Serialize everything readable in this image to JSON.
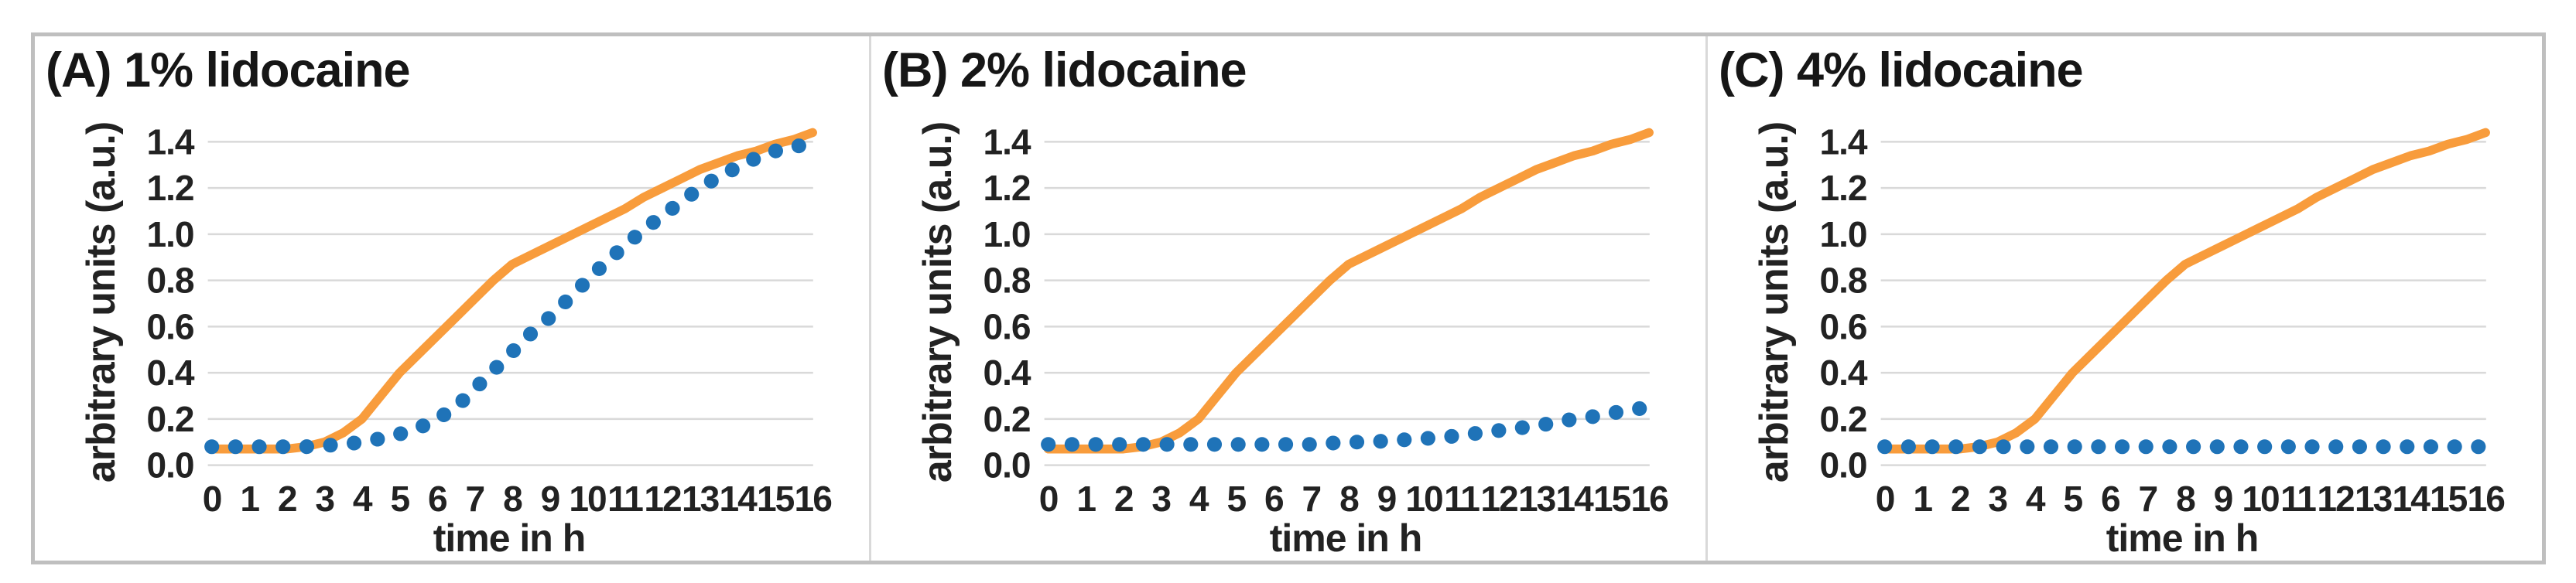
{
  "figure": {
    "ylabel": "arbitrary units (a.u.)",
    "xlabel": "time in h"
  },
  "panels": [
    {
      "label": "A",
      "title": "(A) 1% lidocaine"
    },
    {
      "label": "B",
      "title": "(B) 2% lidocaine"
    },
    {
      "label": "C",
      "title": "(C) 4% lidocaine"
    }
  ],
  "colors": {
    "orange_line": "#F89C3C",
    "blue_dots": "#1F73B8",
    "gridline": "#D9D9D9",
    "frame_border": "#BFBFBF",
    "panel_divider": "#D9D9D9",
    "text": "#1C1C1C"
  },
  "chart_data": [
    {
      "type": "line",
      "title": "(A) 1% lidocaine",
      "xlabel": "time in h",
      "ylabel": "arbitrary units (a.u.)",
      "xlim": [
        0,
        16
      ],
      "ylim": [
        0,
        1.4
      ],
      "grid": true,
      "legend_position": "none",
      "xticks": [
        0,
        1,
        2,
        3,
        4,
        5,
        6,
        7,
        8,
        9,
        10,
        11,
        12,
        13,
        14,
        15,
        16
      ],
      "yticks": [
        "0.0",
        "0.2",
        "0.4",
        "0.6",
        "0.8",
        "1.0",
        "1.2",
        "1.4"
      ],
      "series": [
        {
          "name": "orange-solid-line",
          "style": "line",
          "color": "#F89C3C",
          "x": [
            0,
            0.5,
            1,
            1.5,
            2,
            2.5,
            3,
            3.5,
            4,
            4.5,
            5,
            5.5,
            6,
            6.5,
            7,
            7.5,
            8,
            8.5,
            9,
            9.5,
            10,
            10.5,
            11,
            11.5,
            12,
            12.5,
            13,
            13.5,
            14,
            14.5,
            15,
            15.5,
            16
          ],
          "y": [
            0.07,
            0.07,
            0.07,
            0.07,
            0.07,
            0.08,
            0.1,
            0.14,
            0.2,
            0.3,
            0.4,
            0.48,
            0.56,
            0.64,
            0.72,
            0.8,
            0.87,
            0.91,
            0.95,
            0.99,
            1.03,
            1.07,
            1.11,
            1.16,
            1.2,
            1.24,
            1.28,
            1.31,
            1.34,
            1.36,
            1.39,
            1.41,
            1.44
          ]
        },
        {
          "name": "blue-dotted-line",
          "style": "dotted",
          "color": "#1F73B8",
          "x": [
            0,
            0.5,
            1,
            1.5,
            2,
            2.5,
            3,
            3.5,
            4,
            4.5,
            5,
            5.5,
            6,
            6.5,
            7,
            7.5,
            8,
            8.5,
            9,
            9.5,
            10,
            10.5,
            11,
            11.5,
            12,
            12.5,
            13,
            13.5,
            14,
            14.5,
            15,
            15.5,
            16
          ],
          "y": [
            0.08,
            0.08,
            0.08,
            0.08,
            0.08,
            0.08,
            0.085,
            0.09,
            0.1,
            0.115,
            0.135,
            0.16,
            0.2,
            0.25,
            0.33,
            0.41,
            0.49,
            0.57,
            0.64,
            0.72,
            0.8,
            0.88,
            0.95,
            1.02,
            1.08,
            1.14,
            1.2,
            1.25,
            1.29,
            1.33,
            1.36,
            1.38,
            1.39
          ]
        }
      ]
    },
    {
      "type": "line",
      "title": "(B) 2% lidocaine",
      "xlabel": "time in h",
      "ylabel": "arbitrary units (a.u.)",
      "xlim": [
        0,
        16
      ],
      "ylim": [
        0,
        1.4
      ],
      "grid": true,
      "legend_position": "none",
      "xticks": [
        0,
        1,
        2,
        3,
        4,
        5,
        6,
        7,
        8,
        9,
        10,
        11,
        12,
        13,
        14,
        15,
        16
      ],
      "yticks": [
        "0.0",
        "0.2",
        "0.4",
        "0.6",
        "0.8",
        "1.0",
        "1.2",
        "1.4"
      ],
      "series": [
        {
          "name": "orange-solid-line",
          "style": "line",
          "color": "#F89C3C",
          "x": [
            0,
            0.5,
            1,
            1.5,
            2,
            2.5,
            3,
            3.5,
            4,
            4.5,
            5,
            5.5,
            6,
            6.5,
            7,
            7.5,
            8,
            8.5,
            9,
            9.5,
            10,
            10.5,
            11,
            11.5,
            12,
            12.5,
            13,
            13.5,
            14,
            14.5,
            15,
            15.5,
            16
          ],
          "y": [
            0.07,
            0.07,
            0.07,
            0.07,
            0.07,
            0.08,
            0.1,
            0.14,
            0.2,
            0.3,
            0.4,
            0.48,
            0.56,
            0.64,
            0.72,
            0.8,
            0.87,
            0.91,
            0.95,
            0.99,
            1.03,
            1.07,
            1.11,
            1.16,
            1.2,
            1.24,
            1.28,
            1.31,
            1.34,
            1.36,
            1.39,
            1.41,
            1.44
          ]
        },
        {
          "name": "blue-dotted-line",
          "style": "dotted",
          "color": "#1F73B8",
          "x": [
            0,
            0.5,
            1,
            1.5,
            2,
            2.5,
            3,
            3.5,
            4,
            4.5,
            5,
            5.5,
            6,
            6.5,
            7,
            7.5,
            8,
            8.5,
            9,
            9.5,
            10,
            10.5,
            11,
            11.5,
            12,
            12.5,
            13,
            13.5,
            14,
            14.5,
            15,
            15.5,
            16
          ],
          "y": [
            0.09,
            0.09,
            0.09,
            0.09,
            0.09,
            0.09,
            0.09,
            0.09,
            0.09,
            0.09,
            0.09,
            0.09,
            0.09,
            0.09,
            0.09,
            0.095,
            0.1,
            0.1,
            0.105,
            0.11,
            0.115,
            0.12,
            0.13,
            0.14,
            0.15,
            0.16,
            0.17,
            0.185,
            0.2,
            0.21,
            0.225,
            0.24,
            0.25
          ]
        }
      ]
    },
    {
      "type": "line",
      "title": "(C) 4% lidocaine",
      "xlabel": "time in h",
      "ylabel": "arbitrary units (a.u.)",
      "xlim": [
        0,
        16
      ],
      "ylim": [
        0,
        1.4
      ],
      "grid": true,
      "legend_position": "none",
      "xticks": [
        0,
        1,
        2,
        3,
        4,
        5,
        6,
        7,
        8,
        9,
        10,
        11,
        12,
        13,
        14,
        15,
        16
      ],
      "yticks": [
        "0.0",
        "0.2",
        "0.4",
        "0.6",
        "0.8",
        "1.0",
        "1.2",
        "1.4"
      ],
      "series": [
        {
          "name": "orange-solid-line",
          "style": "line",
          "color": "#F89C3C",
          "x": [
            0,
            0.5,
            1,
            1.5,
            2,
            2.5,
            3,
            3.5,
            4,
            4.5,
            5,
            5.5,
            6,
            6.5,
            7,
            7.5,
            8,
            8.5,
            9,
            9.5,
            10,
            10.5,
            11,
            11.5,
            12,
            12.5,
            13,
            13.5,
            14,
            14.5,
            15,
            15.5,
            16
          ],
          "y": [
            0.07,
            0.07,
            0.07,
            0.07,
            0.07,
            0.08,
            0.1,
            0.14,
            0.2,
            0.3,
            0.4,
            0.48,
            0.56,
            0.64,
            0.72,
            0.8,
            0.87,
            0.91,
            0.95,
            0.99,
            1.03,
            1.07,
            1.11,
            1.16,
            1.2,
            1.24,
            1.28,
            1.31,
            1.34,
            1.36,
            1.39,
            1.41,
            1.44
          ]
        },
        {
          "name": "blue-dotted-line",
          "style": "dotted",
          "color": "#1F73B8",
          "x": [
            0,
            0.5,
            1,
            1.5,
            2,
            2.5,
            3,
            3.5,
            4,
            4.5,
            5,
            5.5,
            6,
            6.5,
            7,
            7.5,
            8,
            8.5,
            9,
            9.5,
            10,
            10.5,
            11,
            11.5,
            12,
            12.5,
            13,
            13.5,
            14,
            14.5,
            15,
            15.5,
            16
          ],
          "y": [
            0.08,
            0.08,
            0.08,
            0.08,
            0.08,
            0.08,
            0.08,
            0.08,
            0.08,
            0.08,
            0.08,
            0.08,
            0.08,
            0.08,
            0.08,
            0.08,
            0.08,
            0.08,
            0.08,
            0.08,
            0.08,
            0.08,
            0.08,
            0.08,
            0.08,
            0.08,
            0.08,
            0.08,
            0.08,
            0.08,
            0.08,
            0.08,
            0.08
          ]
        }
      ]
    }
  ]
}
